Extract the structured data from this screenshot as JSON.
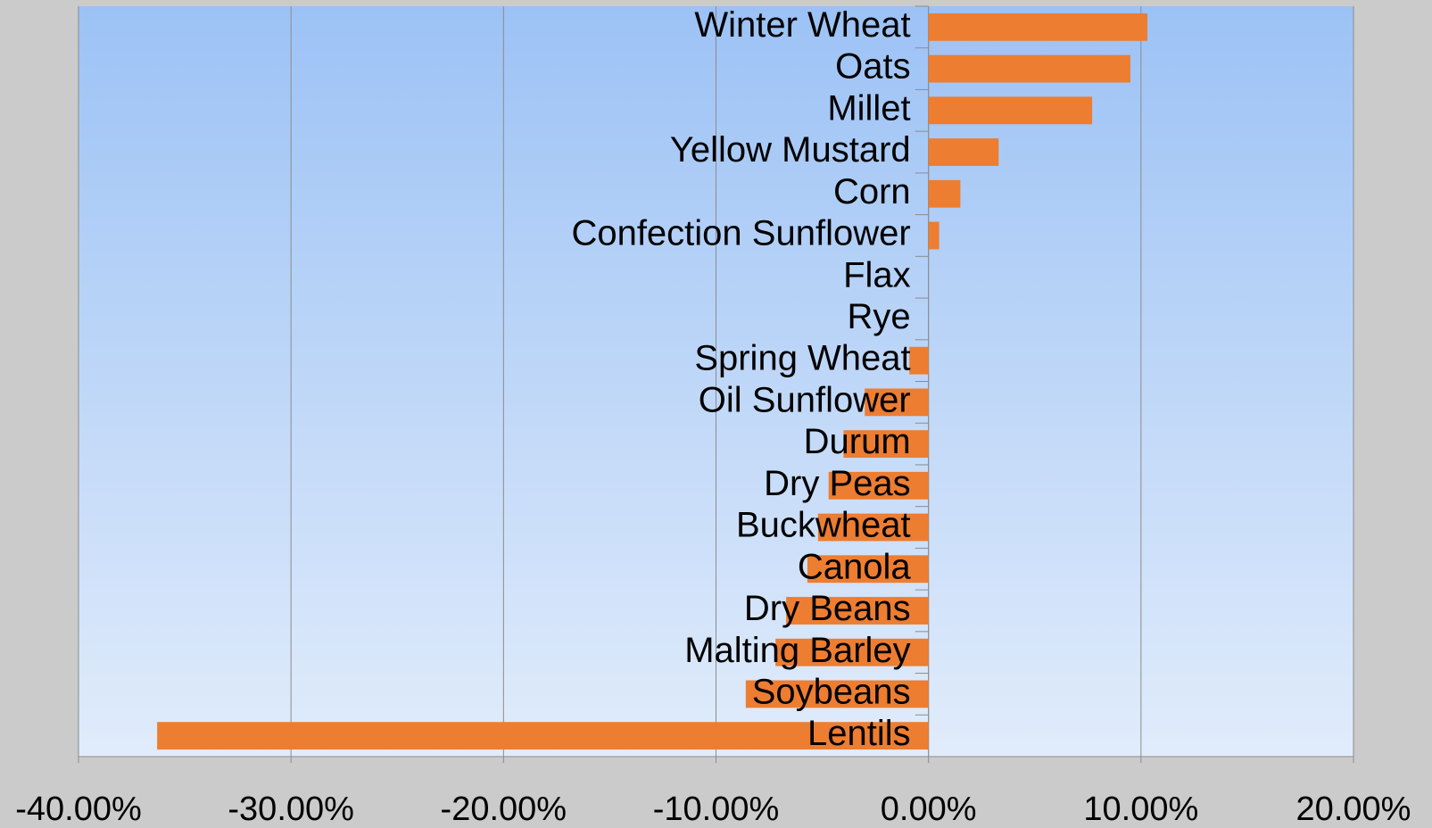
{
  "chart_data": {
    "type": "barh",
    "categories": [
      "Winter Wheat",
      "Oats",
      "Millet",
      "Yellow Mustard",
      "Corn",
      "Confection Sunflower",
      "Flax",
      "Rye",
      "Spring Wheat",
      "Oil Sunflower",
      "Durum",
      "Dry Peas",
      "Buckwheat",
      "Canola",
      "Dry Beans",
      "Malting Barley",
      "Soybeans",
      "Lentils"
    ],
    "values": [
      10.3,
      9.5,
      7.7,
      3.3,
      1.5,
      0.5,
      0,
      0,
      -0.9,
      -3.0,
      -4.0,
      -4.7,
      -5.2,
      -5.7,
      -6.7,
      -7.2,
      -8.6,
      -36.3
    ],
    "color": "#ed7d31",
    "xlim": [
      -40,
      20
    ],
    "xticks": [
      {
        "value": -40,
        "label": "-40.00%"
      },
      {
        "value": -30,
        "label": "-30.00%"
      },
      {
        "value": -20,
        "label": "-20.00%"
      },
      {
        "value": -10,
        "label": "-10.00%"
      },
      {
        "value": 0,
        "label": "0.00%"
      },
      {
        "value": 10,
        "label": "10.00%"
      },
      {
        "value": 20,
        "label": "20.00%"
      }
    ],
    "grid": true
  }
}
